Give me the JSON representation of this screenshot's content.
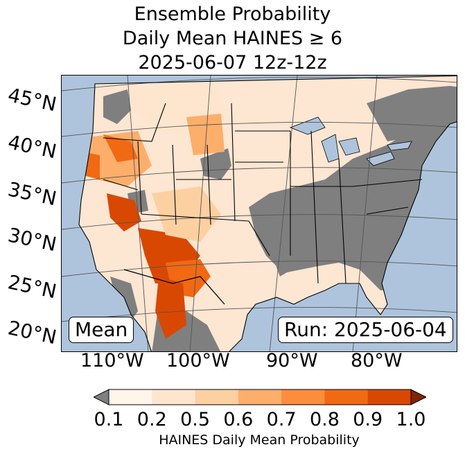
{
  "title": {
    "line1": "Ensemble Probability",
    "line2": "Daily Mean HAINES ≥ 6",
    "line3": "2025-06-07 12z-12z"
  },
  "map": {
    "left_box": "Mean",
    "right_box": "Run: 2025-06-04",
    "lat_labels": [
      "45°N",
      "40°N",
      "35°N",
      "30°N",
      "25°N",
      "20°N"
    ],
    "lon_labels": [
      "110°W",
      "100°W",
      "90°W",
      "80°W"
    ],
    "colors": {
      "ocean": "#aec4dc",
      "land": "#fde6d2",
      "below_threshold": "#7f7f7f",
      "borders": "#000000",
      "lakes": "#aec4dc"
    }
  },
  "colorbar": {
    "label": "HAINES Daily Mean Probability",
    "ticks": [
      "0.1",
      "0.2",
      "0.5",
      "0.6",
      "0.7",
      "0.8",
      "0.9",
      "1.0"
    ],
    "under_color": "#7f7f7f",
    "over_color": "#7f2704",
    "colors": [
      "#fff5eb",
      "#fee6ce",
      "#fdd0a2",
      "#fdae6b",
      "#fd8d3c",
      "#f16913",
      "#d94801"
    ]
  }
}
